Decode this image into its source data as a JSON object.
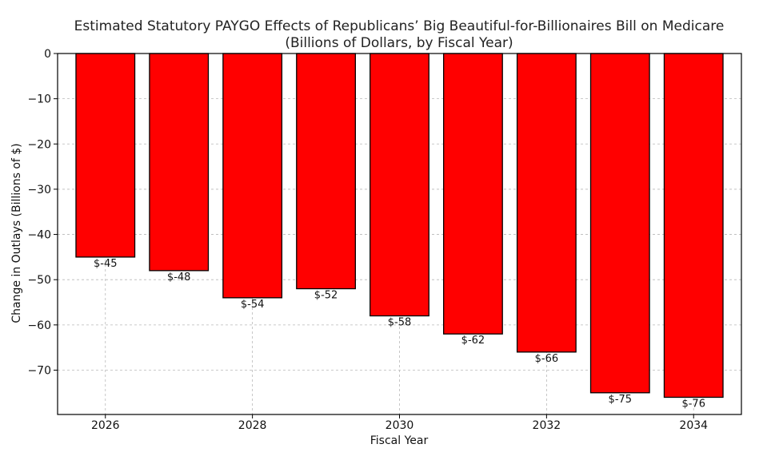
{
  "chart_data": {
    "type": "bar",
    "title": "Estimated Statutory PAYGO Effects of Republicans’ Big Beautiful-for-Billionaires Bill on Medicare",
    "subtitle": "(Billions of Dollars, by Fiscal Year)",
    "xlabel": "Fiscal Year",
    "ylabel": "Change in Outlays (Billions of $)",
    "categories": [
      "2026",
      "2027",
      "2028",
      "2029",
      "2030",
      "2031",
      "2032",
      "2033",
      "2034"
    ],
    "values": [
      -45,
      -48,
      -54,
      -52,
      -58,
      -62,
      -66,
      -75,
      -76
    ],
    "data_labels": [
      "$-45",
      "$-48",
      "$-54",
      "$-52",
      "$-58",
      "$-62",
      "$-66",
      "$-75",
      "$-76"
    ],
    "x_ticks": [
      "2026",
      "2028",
      "2030",
      "2032",
      "2034"
    ],
    "y_ticks": [
      0,
      -10,
      -20,
      -30,
      -40,
      -50,
      -60,
      -70
    ],
    "y_tick_labels": [
      "0",
      "−10",
      "−20",
      "−30",
      "−40",
      "−50",
      "−60",
      "−70"
    ],
    "ylim": [
      -79.8,
      0
    ],
    "bar_color": "#ff0000",
    "edge_color": "#000000",
    "grid": true
  }
}
